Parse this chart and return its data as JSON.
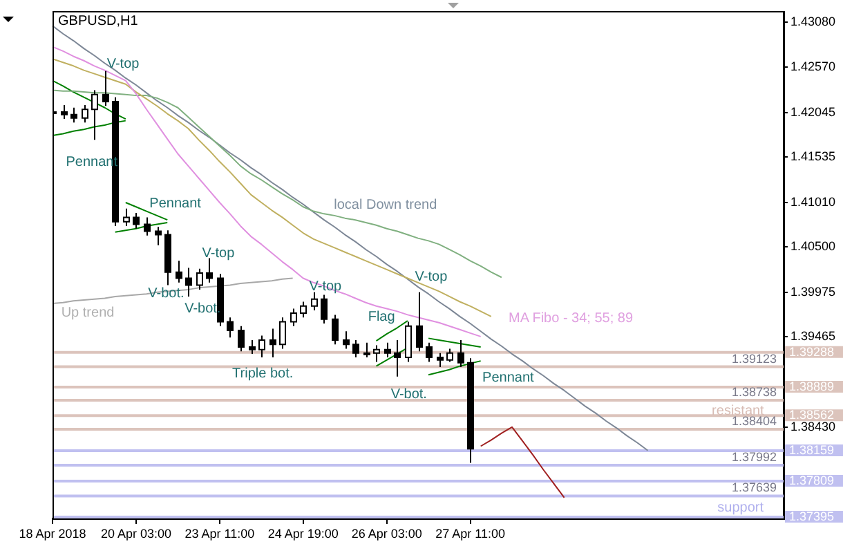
{
  "chart_data": {
    "type": "candlestick",
    "title": "GBPUSD,H1",
    "legend": false,
    "grid": false,
    "marker": "none",
    "line_style": "solid",
    "categories": [
      "18 Apr 2018",
      null,
      null,
      null,
      null,
      null,
      null,
      null,
      "20 Apr 03:00",
      null,
      null,
      null,
      null,
      null,
      null,
      null,
      "23 Apr 11:00",
      null,
      null,
      null,
      null,
      null,
      null,
      null,
      "24 Apr 19:00",
      null,
      null,
      null,
      null,
      null,
      null,
      null,
      "26 Apr 03:00",
      null,
      null,
      null,
      null,
      null,
      null,
      null,
      "27 Apr 11:00",
      null,
      null,
      null,
      null,
      null,
      null,
      null,
      null,
      null,
      null,
      null,
      null,
      null,
      null,
      null,
      null,
      null,
      null,
      null,
      null,
      null,
      null,
      null,
      null,
      null,
      null,
      null,
      null,
      null,
      null
    ],
    "ohlc": [
      [
        1.4205,
        1.4215,
        1.42,
        1.4205
      ],
      [
        1.4205,
        1.4213,
        1.4197,
        1.4202
      ],
      [
        1.4202,
        1.421,
        1.4193,
        1.4198
      ],
      [
        1.4198,
        1.4213,
        1.4193,
        1.4208
      ],
      [
        1.4208,
        1.423,
        1.4173,
        1.4225
      ],
      [
        1.4225,
        1.4252,
        1.4212,
        1.4217
      ],
      [
        1.4217,
        1.4222,
        1.4074,
        1.4079
      ],
      [
        1.4079,
        1.4094,
        1.4074,
        1.4084
      ],
      [
        1.4084,
        1.4089,
        1.4071,
        1.4076
      ],
      [
        1.4076,
        1.4084,
        1.4063,
        1.4068
      ],
      [
        1.4068,
        1.4073,
        1.4052,
        1.4064
      ],
      [
        1.4064,
        1.4069,
        1.4006,
        1.4021
      ],
      [
        1.4021,
        1.4034,
        1.4009,
        1.4014
      ],
      [
        1.4014,
        1.4026,
        1.3993,
        1.4006
      ],
      [
        1.4006,
        1.4025,
        1.4001,
        1.402
      ],
      [
        1.402,
        1.4037,
        1.4009,
        1.4014
      ],
      [
        1.4014,
        1.4019,
        1.3959,
        1.3964
      ],
      [
        1.3964,
        1.3969,
        1.3946,
        1.3954
      ],
      [
        1.3954,
        1.3959,
        1.393,
        1.3935
      ],
      [
        1.3935,
        1.3943,
        1.3927,
        1.3932
      ],
      [
        1.3932,
        1.3948,
        1.3923,
        1.3943
      ],
      [
        1.3943,
        1.3956,
        1.3923,
        1.3938
      ],
      [
        1.3938,
        1.3969,
        1.3933,
        1.3964
      ],
      [
        1.3964,
        1.3979,
        1.3959,
        1.3974
      ],
      [
        1.3974,
        1.3987,
        1.3969,
        1.3982
      ],
      [
        1.3982,
        1.3998,
        1.3977,
        1.399
      ],
      [
        1.399,
        1.3995,
        1.3962,
        1.3967
      ],
      [
        1.3967,
        1.3972,
        1.3938,
        1.3943
      ],
      [
        1.3943,
        1.3953,
        1.3933,
        1.3938
      ],
      [
        1.3938,
        1.3943,
        1.3923,
        1.3928
      ],
      [
        1.3928,
        1.394,
        1.3923,
        1.3928
      ],
      [
        1.3928,
        1.3937,
        1.3918,
        1.3932
      ],
      [
        1.3932,
        1.394,
        1.3923,
        1.3928
      ],
      [
        1.3928,
        1.3943,
        1.3901,
        1.3923
      ],
      [
        1.3923,
        1.3964,
        1.3918,
        1.3959
      ],
      [
        1.3959,
        1.3998,
        1.393,
        1.3935
      ],
      [
        1.3935,
        1.394,
        1.3918,
        1.3923
      ],
      [
        1.3923,
        1.3928,
        1.3912,
        1.392
      ],
      [
        1.392,
        1.3933,
        1.3918,
        1.3928
      ],
      [
        1.3928,
        1.3943,
        1.3912,
        1.3917
      ],
      [
        1.3917,
        1.3922,
        1.3802,
        1.3818
      ],
      null,
      null,
      null,
      null,
      null,
      null,
      null,
      null,
      null,
      null,
      null,
      null,
      null,
      null,
      null,
      null,
      null,
      null,
      null,
      null,
      null,
      null,
      null,
      null,
      null,
      null,
      null,
      null,
      null,
      null
    ],
    "series": [
      {
        "type": "line",
        "color": "#e090e0",
        "values": [
          1.428,
          1.4275,
          1.4269,
          1.4264,
          1.4258,
          1.4253,
          1.4247,
          1.4241,
          1.4226,
          1.4208,
          1.4191,
          1.4174,
          1.4157,
          1.4143,
          1.4129,
          1.4115,
          1.4101,
          1.4088,
          1.4074,
          1.4062,
          1.4053,
          1.4043,
          1.4033,
          1.4024,
          1.4014,
          1.4009,
          1.4005,
          1.4,
          1.3996,
          1.3991,
          1.3986,
          1.3982,
          1.3979,
          1.3976,
          1.3972,
          1.3969,
          1.3966,
          1.3963,
          1.3959,
          1.3955,
          1.3951,
          1.3947,
          null,
          null,
          null,
          null,
          null,
          null,
          null,
          null,
          null,
          null,
          null,
          null,
          null,
          null,
          null,
          null,
          null,
          null,
          null,
          null,
          null,
          null,
          null,
          null,
          null,
          null,
          null,
          null,
          null
        ]
      },
      {
        "type": "line",
        "color": "#c0b060",
        "values": [
          1.4266,
          1.4262,
          1.4258,
          1.4253,
          1.4249,
          1.4245,
          1.4241,
          1.4237,
          1.4228,
          1.422,
          1.4212,
          1.4203,
          1.4195,
          1.4186,
          1.4173,
          1.4161,
          1.4148,
          1.4136,
          1.4123,
          1.411,
          1.4101,
          1.4092,
          1.4084,
          1.4075,
          1.4066,
          1.4059,
          1.4054,
          1.4049,
          1.4044,
          1.4039,
          1.4034,
          1.4029,
          1.4024,
          1.4019,
          1.4014,
          1.4009,
          1.4004,
          1.3999,
          1.3993,
          1.3987,
          1.3982,
          1.3976,
          1.397,
          null,
          null,
          null,
          null,
          null,
          null,
          null,
          null,
          null,
          null,
          null,
          null,
          null,
          null,
          null,
          null,
          null,
          null,
          null,
          null,
          null,
          null,
          null,
          null,
          null,
          null,
          null,
          null
        ]
      },
      {
        "type": "line",
        "color": "#80b080",
        "values": [
          1.423,
          1.4229,
          1.4229,
          1.4228,
          1.4227,
          1.4227,
          1.4226,
          1.4225,
          1.4224,
          1.4224,
          1.4221,
          1.4216,
          1.421,
          1.4199,
          1.4188,
          1.4177,
          1.4166,
          1.4155,
          1.4143,
          1.4134,
          1.4127,
          1.4119,
          1.4111,
          1.4104,
          1.4096,
          1.4091,
          1.4088,
          1.4086,
          1.4083,
          1.4081,
          1.4078,
          1.4075,
          1.4071,
          1.4068,
          1.4064,
          1.406,
          1.4057,
          1.4053,
          1.4047,
          1.4041,
          1.4034,
          1.4028,
          1.4021,
          1.4015,
          null,
          null,
          null,
          null,
          null,
          null,
          null,
          null,
          null,
          null,
          null,
          null,
          null,
          null,
          null,
          null,
          null,
          null,
          null,
          null,
          null,
          null,
          null,
          null,
          null,
          null,
          null
        ]
      },
      {
        "type": "line",
        "color": "#7d8796",
        "values": [
          1.4304,
          1.4295,
          1.4287,
          1.4278,
          1.427,
          1.4261,
          1.4253,
          1.4244,
          1.4236,
          1.4227,
          1.4218,
          1.421,
          1.4201,
          1.4193,
          1.4184,
          1.4176,
          1.4167,
          1.4158,
          1.415,
          1.4141,
          1.4133,
          1.4124,
          1.4116,
          1.4107,
          1.4099,
          1.409,
          1.4081,
          1.4073,
          1.4064,
          1.4056,
          1.4047,
          1.4039,
          1.403,
          1.4022,
          1.4013,
          1.4004,
          1.3996,
          1.3987,
          1.3979,
          1.397,
          1.3962,
          1.3953,
          1.3944,
          1.3936,
          1.3927,
          1.3919,
          1.391,
          1.3902,
          1.3893,
          1.3885,
          1.3876,
          1.3867,
          1.3859,
          1.385,
          1.3842,
          1.3833,
          1.3825,
          1.3816,
          null,
          null,
          null,
          null,
          null,
          null,
          null,
          null,
          null,
          null,
          null,
          null,
          null
        ]
      },
      {
        "type": "line",
        "color": "#a8a8a8",
        "values": [
          1.3985,
          1.3986,
          1.3988,
          1.3989,
          1.399,
          1.3991,
          1.3993,
          1.3994,
          1.3995,
          1.3996,
          1.3998,
          1.3999,
          1.4,
          1.4001,
          1.4003,
          1.4004,
          1.4005,
          1.4006,
          1.4008,
          1.4009,
          1.401,
          1.4011,
          1.4013,
          1.4014,
          null,
          null,
          null,
          null,
          null,
          null,
          null,
          null,
          null,
          null,
          null,
          null,
          null,
          null,
          null,
          null,
          null,
          null,
          null,
          null,
          null,
          null,
          null,
          null,
          null,
          null,
          null,
          null,
          null,
          null,
          null,
          null,
          null,
          null,
          null,
          null,
          null,
          null,
          null,
          null,
          null,
          null,
          null,
          null,
          null,
          null,
          null
        ]
      },
      {
        "type": "line",
        "color": "#008000",
        "values": [
          1.4241,
          1.4235,
          1.4228,
          1.4222,
          1.4216,
          1.421,
          1.4203,
          1.4197,
          null,
          null,
          null,
          null,
          null,
          null,
          null,
          null,
          null,
          null,
          null,
          null,
          null,
          null,
          null,
          null,
          null,
          null,
          null,
          null,
          null,
          null,
          null,
          null,
          null,
          null,
          null,
          null,
          null,
          null,
          null,
          null,
          null,
          null,
          null,
          null,
          null,
          null,
          null,
          null,
          null,
          null,
          null,
          null,
          null,
          null,
          null,
          null,
          null,
          null,
          null,
          null,
          null,
          null,
          null,
          null,
          null,
          null,
          null,
          null,
          null,
          null,
          null
        ]
      },
      {
        "type": "line",
        "color": "#008000",
        "values": [
          1.4178,
          1.418,
          1.4183,
          1.4185,
          1.4188,
          1.419,
          1.4193,
          1.4195,
          null,
          null,
          null,
          null,
          null,
          null,
          null,
          null,
          null,
          null,
          null,
          null,
          null,
          null,
          null,
          null,
          null,
          null,
          null,
          null,
          null,
          null,
          null,
          null,
          null,
          null,
          null,
          null,
          null,
          null,
          null,
          null,
          null,
          null,
          null,
          null,
          null,
          null,
          null,
          null,
          null,
          null,
          null,
          null,
          null,
          null,
          null,
          null,
          null,
          null,
          null,
          null,
          null,
          null,
          null,
          null,
          null,
          null,
          null,
          null,
          null,
          null,
          null
        ]
      },
      {
        "type": "line",
        "color": "#008000",
        "values": [
          null,
          null,
          null,
          null,
          null,
          null,
          null,
          1.4101,
          1.4096,
          1.4091,
          1.4086,
          1.4081,
          null,
          null,
          null,
          null,
          null,
          null,
          null,
          null,
          null,
          null,
          null,
          null,
          null,
          null,
          null,
          null,
          null,
          null,
          null,
          null,
          null,
          null,
          null,
          null,
          null,
          null,
          null,
          null,
          null,
          null,
          null,
          null,
          null,
          null,
          null,
          null,
          null,
          null,
          null,
          null,
          null,
          null,
          null,
          null,
          null,
          null,
          null,
          null,
          null,
          null,
          null,
          null,
          null,
          null,
          null,
          null,
          null,
          null,
          null
        ]
      },
      {
        "type": "line",
        "color": "#008000",
        "values": [
          null,
          null,
          null,
          null,
          null,
          null,
          1.4067,
          1.4069,
          1.4071,
          1.4074,
          1.4076,
          1.4078,
          null,
          null,
          null,
          null,
          null,
          null,
          null,
          null,
          null,
          null,
          null,
          null,
          null,
          null,
          null,
          null,
          null,
          null,
          null,
          null,
          null,
          null,
          null,
          null,
          null,
          null,
          null,
          null,
          null,
          null,
          null,
          null,
          null,
          null,
          null,
          null,
          null,
          null,
          null,
          null,
          null,
          null,
          null,
          null,
          null,
          null,
          null,
          null,
          null,
          null,
          null,
          null,
          null,
          null,
          null,
          null,
          null,
          null,
          null
        ]
      },
      {
        "type": "line",
        "color": "#008000",
        "values": [
          null,
          null,
          null,
          null,
          null,
          null,
          null,
          null,
          null,
          null,
          null,
          null,
          null,
          null,
          null,
          null,
          null,
          null,
          null,
          null,
          null,
          null,
          null,
          null,
          null,
          null,
          null,
          null,
          null,
          null,
          null,
          1.3942,
          1.395,
          1.3957,
          1.3965,
          null,
          null,
          null,
          null,
          null,
          null,
          null,
          null,
          null,
          null,
          null,
          null,
          null,
          null,
          null,
          null,
          null,
          null,
          null,
          null,
          null,
          null,
          null,
          null,
          null,
          null,
          null,
          null,
          null,
          null,
          null,
          null,
          null,
          null,
          null,
          null
        ]
      },
      {
        "type": "line",
        "color": "#008000",
        "values": [
          null,
          null,
          null,
          null,
          null,
          null,
          null,
          null,
          null,
          null,
          null,
          null,
          null,
          null,
          null,
          null,
          null,
          null,
          null,
          null,
          null,
          null,
          null,
          null,
          null,
          null,
          null,
          null,
          null,
          null,
          null,
          1.3913,
          1.392,
          1.3927,
          1.3934,
          null,
          null,
          null,
          null,
          null,
          null,
          null,
          null,
          null,
          null,
          null,
          null,
          null,
          null,
          null,
          null,
          null,
          null,
          null,
          null,
          null,
          null,
          null,
          null,
          null,
          null,
          null,
          null,
          null,
          null,
          null,
          null,
          null,
          null,
          null,
          null
        ]
      },
      {
        "type": "line",
        "color": "#008000",
        "values": [
          null,
          null,
          null,
          null,
          null,
          null,
          null,
          null,
          null,
          null,
          null,
          null,
          null,
          null,
          null,
          null,
          null,
          null,
          null,
          null,
          null,
          null,
          null,
          null,
          null,
          null,
          null,
          null,
          null,
          null,
          null,
          null,
          null,
          null,
          null,
          null,
          1.3945,
          1.3943,
          1.3941,
          1.3939,
          1.3937,
          1.3935,
          null,
          null,
          null,
          null,
          null,
          null,
          null,
          null,
          null,
          null,
          null,
          null,
          null,
          null,
          null,
          null,
          null,
          null,
          null,
          null,
          null,
          null,
          null,
          null,
          null,
          null,
          null,
          null,
          null
        ]
      },
      {
        "type": "line",
        "color": "#008000",
        "values": [
          null,
          null,
          null,
          null,
          null,
          null,
          null,
          null,
          null,
          null,
          null,
          null,
          null,
          null,
          null,
          null,
          null,
          null,
          null,
          null,
          null,
          null,
          null,
          null,
          null,
          null,
          null,
          null,
          null,
          null,
          null,
          null,
          null,
          null,
          null,
          null,
          1.3903,
          1.3906,
          1.3909,
          1.3913,
          1.3916,
          1.3919,
          null,
          null,
          null,
          null,
          null,
          null,
          null,
          null,
          null,
          null,
          null,
          null,
          null,
          null,
          null,
          null,
          null,
          null,
          null,
          null,
          null,
          null,
          null,
          null,
          null,
          null,
          null,
          null,
          null
        ]
      },
      {
        "type": "line",
        "color": "#a02020",
        "values": [
          null,
          null,
          null,
          null,
          null,
          null,
          null,
          null,
          null,
          null,
          null,
          null,
          null,
          null,
          null,
          null,
          null,
          null,
          null,
          null,
          null,
          null,
          null,
          null,
          null,
          null,
          null,
          null,
          null,
          null,
          null,
          null,
          null,
          null,
          null,
          null,
          null,
          null,
          null,
          null,
          null,
          1.3821,
          1.3828,
          1.3836,
          1.3843,
          1.3827,
          1.3811,
          1.3794,
          1.3778,
          1.3762,
          null,
          null,
          null,
          null,
          null,
          null,
          null,
          null,
          null,
          null,
          null,
          null,
          null,
          null,
          null,
          null,
          null,
          null,
          null,
          null,
          null
        ]
      }
    ],
    "ref_lines": [
      {
        "axis": "y",
        "value": 1.39288,
        "label": "1.39288",
        "color": "#dcc4bc"
      },
      {
        "axis": "y",
        "value": 1.39123,
        "label": "1.39123",
        "color": "#dcc4bc"
      },
      {
        "axis": "y",
        "value": 1.38889,
        "label": "1.38889",
        "color": "#dcc4bc"
      },
      {
        "axis": "y",
        "value": 1.38738,
        "label": "1.38738",
        "color": "#dcc4bc"
      },
      {
        "axis": "y",
        "value": 1.38562,
        "label": "1.38562",
        "color": "#dcc4bc"
      },
      {
        "axis": "y",
        "value": 1.38404,
        "label": "1.38404",
        "color": "#dcc4bc"
      },
      {
        "axis": "y",
        "value": 1.38159,
        "label": "1.38159",
        "color": "#c0c0f0"
      },
      {
        "axis": "y",
        "value": 1.37992,
        "label": "1.37992",
        "color": "#c0c0f0"
      },
      {
        "axis": "y",
        "value": 1.37809,
        "label": "1.37809",
        "color": "#c0c0f0"
      },
      {
        "axis": "y",
        "value": 1.37639,
        "label": "1.37639",
        "color": "#c0c0f0"
      },
      {
        "axis": "y",
        "value": 1.37395,
        "label": "1.37395",
        "color": "#c0c0f0"
      }
    ],
    "annotations": [
      {
        "text": "V-top",
        "y": 1.4252
      },
      {
        "text": "Pennant",
        "y": 1.4178
      },
      "Pennant",
      "V-top",
      {
        "text": "V-bot.",
        "y": 1.4006
      },
      "V-bot.",
      "V-top",
      "Triple bot.",
      "Flag",
      {
        "text": "V-top",
        "y": 1.3998
      },
      "V-bot.",
      {
        "text": "Pennant",
        "y": 1.3919
      },
      "local Down trend",
      "Up trend",
      "MA Fibo - 34; 55; 89",
      "resistant",
      "support"
    ],
    "ylim": [
      1.3738,
      1.4321
    ],
    "yticks": [
      {
        "value": 1.4308,
        "label": "1.43080"
      },
      {
        "value": 1.4257,
        "label": "1.42570"
      },
      {
        "value": 1.42045,
        "label": "1.42045"
      },
      {
        "value": 1.41535,
        "label": "1.41535"
      },
      {
        "value": 1.4101,
        "label": "1.41010"
      },
      {
        "value": 1.405,
        "label": "1.40500"
      },
      {
        "value": 1.39975,
        "label": "1.39975"
      },
      {
        "value": 1.39465,
        "label": "1.39465"
      },
      {
        "value": 1.3843,
        "label": "1.38430"
      }
    ]
  }
}
